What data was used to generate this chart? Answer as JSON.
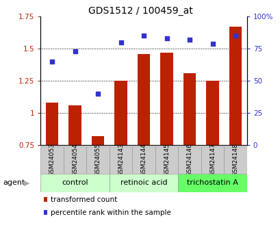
{
  "title": "GDS1512 / 100459_at",
  "samples": [
    "GSM24053",
    "GSM24054",
    "GSM24055",
    "GSM24143",
    "GSM24144",
    "GSM24145",
    "GSM24146",
    "GSM24147",
    "GSM24148"
  ],
  "bar_values": [
    1.08,
    1.06,
    0.82,
    1.25,
    1.46,
    1.47,
    1.31,
    1.25,
    1.67
  ],
  "dot_values": [
    65,
    73,
    40,
    80,
    85,
    83,
    82,
    79,
    85
  ],
  "bar_color": "#bb2200",
  "dot_color": "#3333cc",
  "ylim_left": [
    0.75,
    1.75
  ],
  "ylim_right": [
    0,
    100
  ],
  "yticks_left": [
    0.75,
    1.0,
    1.25,
    1.5,
    1.75
  ],
  "ytick_labels_left": [
    "0.75",
    "1",
    "1.25",
    "1.5",
    "1.75"
  ],
  "yticks_right": [
    0,
    25,
    50,
    75,
    100
  ],
  "ytick_labels_right": [
    "0",
    "25",
    "50",
    "75",
    "100%"
  ],
  "hgrid_values": [
    1.0,
    1.25,
    1.5
  ],
  "groups": [
    {
      "label": "control",
      "start": 0,
      "end": 3,
      "color": "#ccffcc"
    },
    {
      "label": "retinoic acid",
      "start": 3,
      "end": 6,
      "color": "#ccffcc"
    },
    {
      "label": "trichostatin A",
      "start": 6,
      "end": 9,
      "color": "#66ff66"
    }
  ],
  "agent_label": "agent",
  "legend_bar": "transformed count",
  "legend_dot": "percentile rank within the sample",
  "bg_color": "#ffffff",
  "tick_box_color": "#cccccc",
  "tick_box_edge": "#999999",
  "bar_width": 0.55
}
